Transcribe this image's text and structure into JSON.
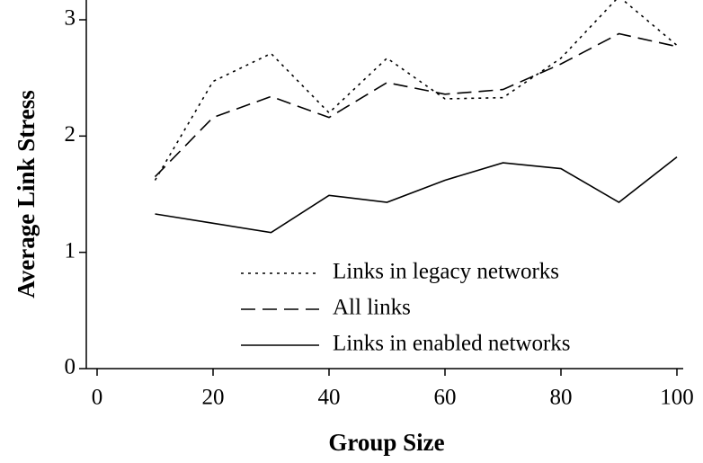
{
  "chart_data": {
    "type": "line",
    "xlabel": "Group Size",
    "ylabel": "Average Link Stress",
    "x": [
      10,
      20,
      30,
      40,
      50,
      60,
      70,
      80,
      90,
      100
    ],
    "series": [
      {
        "name": "Links in legacy networks",
        "color": "#000000",
        "dash": "dotted",
        "values": [
          1.62,
          2.47,
          2.71,
          2.2,
          2.67,
          2.32,
          2.33,
          2.67,
          3.2,
          2.78
        ]
      },
      {
        "name": "All links",
        "color": "#000000",
        "dash": "dashed",
        "values": [
          1.65,
          2.16,
          2.34,
          2.16,
          2.46,
          2.36,
          2.4,
          2.62,
          2.88,
          2.77
        ]
      },
      {
        "name": "Links in enabled networks",
        "color": "#000000",
        "dash": "solid",
        "values": [
          1.33,
          1.25,
          1.17,
          1.49,
          1.43,
          1.62,
          1.77,
          1.72,
          1.43,
          1.82
        ]
      }
    ],
    "xlim": [
      0,
      100
    ],
    "xticks": [
      0,
      20,
      40,
      60,
      80,
      100
    ],
    "ylim": [
      0,
      3
    ],
    "yticks": [
      0,
      1,
      2,
      3
    ],
    "legend": "lower right"
  }
}
